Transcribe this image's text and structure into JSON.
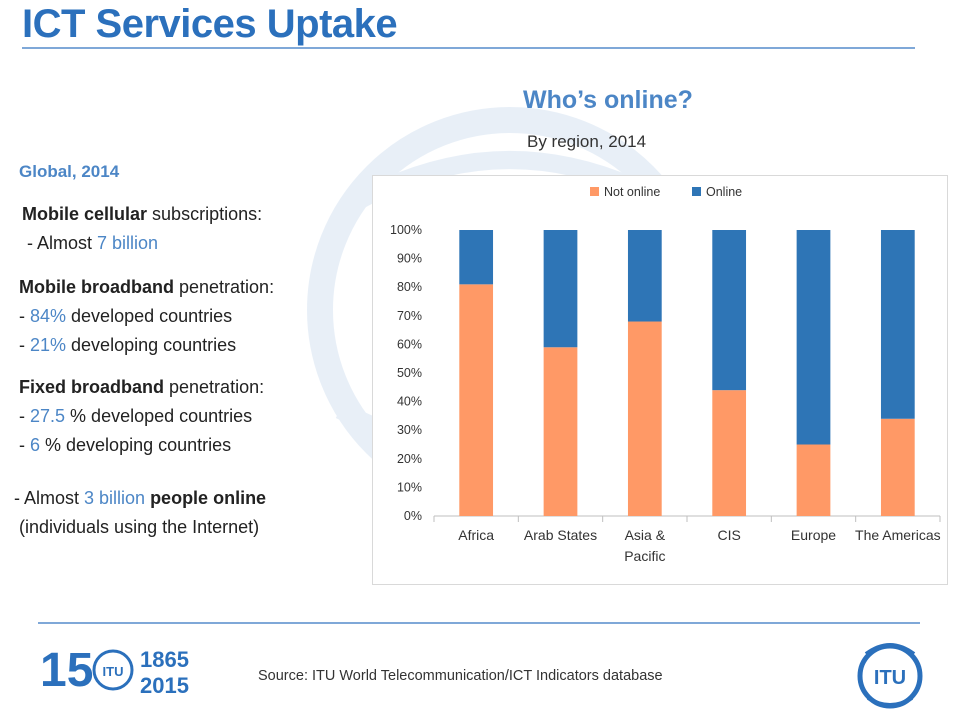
{
  "slide": {
    "title": "ICT Services Uptake",
    "chart_heading": "Who’s online?",
    "chart_subheading": "By region, 2014",
    "source": "Source: ITU World Telecommunication/ICT Indicators database"
  },
  "left_panel": {
    "heading": "Global, 2014",
    "mobile_cellular": {
      "label_bold": "Mobile cellular",
      "label_rest": " subscriptions:",
      "line_prefix": "- Almost ",
      "value": "7 billion"
    },
    "mobile_broadband": {
      "label_bold": "Mobile broadband",
      "label_rest": " penetration:",
      "developed_prefix": "- ",
      "developed_value": "84%",
      "developed_suffix": " developed countries",
      "developing_prefix": "- ",
      "developing_value": "21%",
      "developing_suffix": " developing countries"
    },
    "fixed_broadband": {
      "label_bold": "Fixed broadband",
      "label_rest": " penetration:",
      "developed_prefix": "- ",
      "developed_value": "27.5",
      "developed_suffix": " % developed countries",
      "developing_prefix": "- ",
      "developing_value": "6",
      "developing_suffix": " % developing countries"
    },
    "online": {
      "prefix": "- Almost ",
      "value": "3 billion",
      "bold": " people online",
      "line2": "(individuals using the Internet)"
    }
  },
  "logo": {
    "text_150": "150",
    "year_start": "1865",
    "year_end": "2015",
    "itu": "ITU"
  },
  "colors": {
    "accent": "#2B70BC",
    "not_online": "#FF9966",
    "online": "#2E75B6"
  },
  "chart_data": {
    "type": "bar",
    "stacked": true,
    "categories": [
      "Africa",
      "Arab States",
      "Asia & Pacific",
      "CIS",
      "Europe",
      "The Americas"
    ],
    "series": [
      {
        "name": "Not online",
        "values": [
          81,
          59,
          68,
          44,
          25,
          34
        ],
        "color": "#FF9966"
      },
      {
        "name": "Online",
        "values": [
          19,
          41,
          32,
          56,
          75,
          66
        ],
        "color": "#2E75B6"
      }
    ],
    "ylim": [
      0,
      100
    ],
    "yticks": [
      "0%",
      "10%",
      "20%",
      "30%",
      "40%",
      "50%",
      "60%",
      "70%",
      "80%",
      "90%",
      "100%"
    ],
    "grid": false,
    "legend": "top"
  }
}
